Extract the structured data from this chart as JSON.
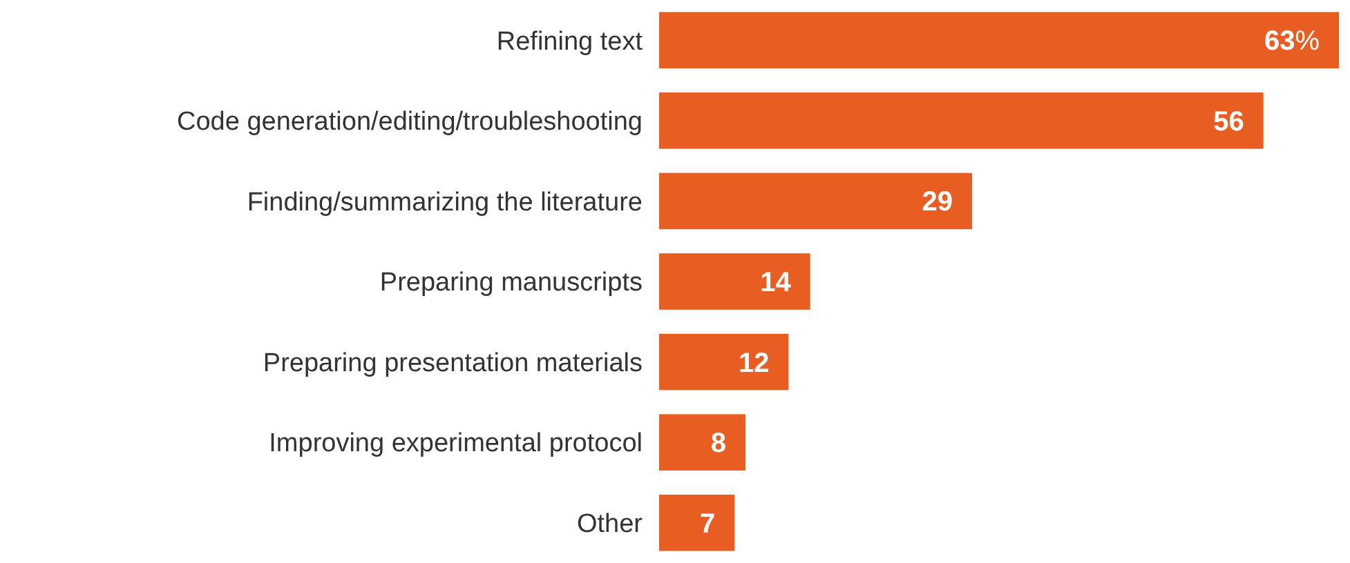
{
  "chart_data": {
    "type": "bar",
    "orientation": "horizontal",
    "categories": [
      "Refining text",
      "Code generation/editing/troubleshooting",
      "Finding/summarizing the literature",
      "Preparing manuscripts",
      "Preparing presentation materials",
      "Improving experimental protocol",
      "Other"
    ],
    "values": [
      63,
      56,
      29,
      14,
      12,
      8,
      7
    ],
    "value_labels": [
      "63%",
      "56",
      "29",
      "14",
      "12",
      "8",
      "7"
    ],
    "color": "#e85d22"
  }
}
